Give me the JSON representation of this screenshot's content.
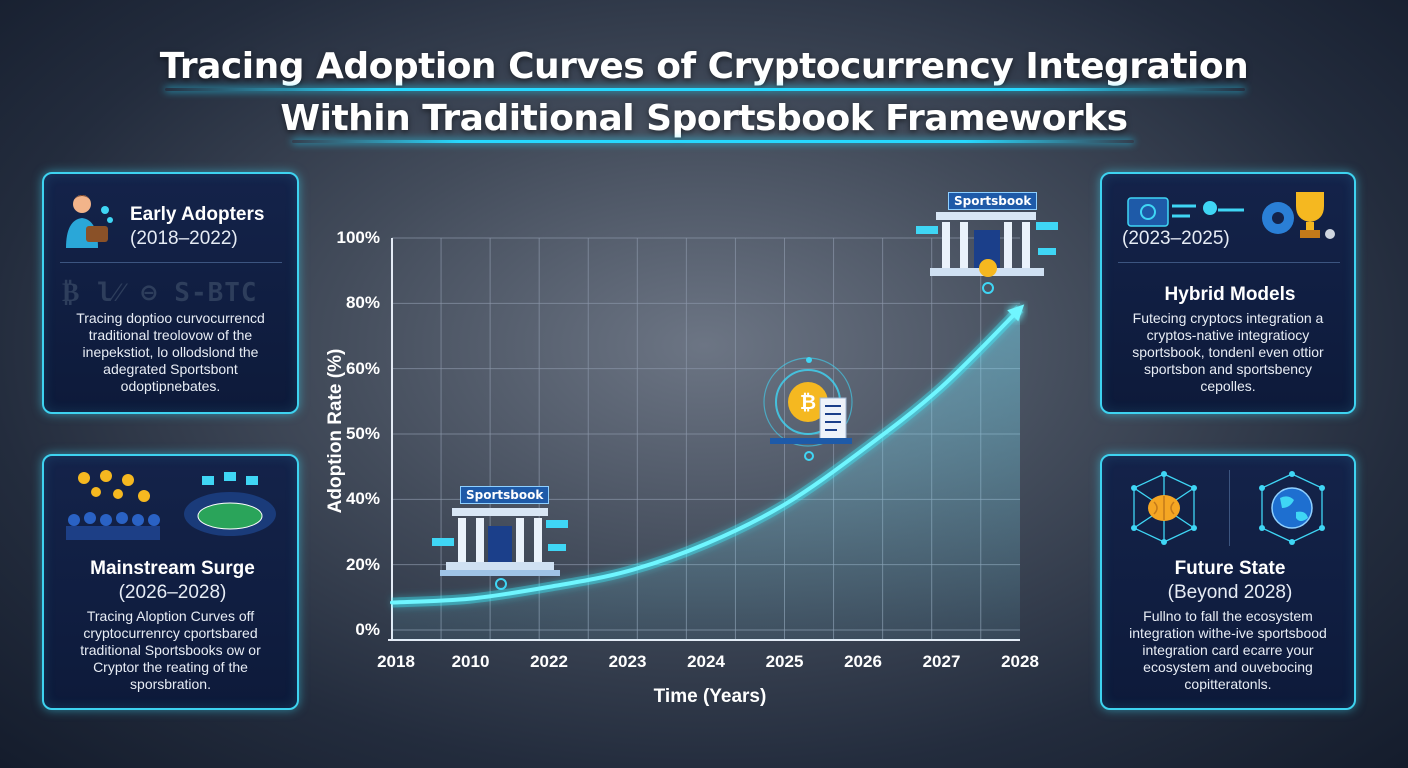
{
  "title": {
    "line1": "Tracing Adoption Curves of Cryptocurrency Integration",
    "line2": "Within Traditional Sportsbook Frameworks"
  },
  "cards": {
    "early": {
      "heading": "Early Adopters",
      "period": "(2018–2022)",
      "watermark": "₿ l⁄⁄ ⊖ S-BTC",
      "body": [
        "Tracing doptioo curvocurrencd",
        "traditional treolovow of the",
        "inepekstiot, lo ollodslond the",
        "adegrated Sportsbont",
        "odoptipnebates."
      ]
    },
    "mainstream": {
      "heading": "Mainstream Surge",
      "period": "(2026–2028)",
      "body": [
        "Tracing Aloption Curves off",
        "cryptocurrenrcy cportsbared",
        "traditional Sportsbooks ow or",
        "Cryptor the reating of the",
        "sporsbration."
      ]
    },
    "hybrid": {
      "period": "(2023–2025)",
      "heading": "Hybrid Models",
      "body": [
        "Futecing cryptocs integration a",
        "cryptos-native integratiocy",
        "sportsbook, tondenl even ottior",
        "sportsbon and sportsbency",
        "cepolles."
      ]
    },
    "future": {
      "heading": "Future State",
      "period": "(Beyond 2028)",
      "body": [
        "Fullno to fall the ecosystem",
        "integration withe-ive sportsbood",
        "integration card ecarre your",
        "ecosystem and ouvebocing",
        "copitteratonls."
      ]
    }
  },
  "icons": {
    "early_person": "person-wallet-icon",
    "mainstream_crowd": "crowd-coins-icon",
    "mainstream_stadium": "stadium-icon",
    "hybrid_network": "network-chip-icon",
    "hybrid_trophy": "trophy-gear-icon",
    "future_brain": "brain-network-icon",
    "future_globe": "globe-network-icon",
    "bitcoin_ledger": "bitcoin-ledger-icon",
    "sportsbook": "sportsbook-building-icon"
  },
  "sportsbook_labels": {
    "low": "Sportsbook",
    "high": "Sportsbook"
  },
  "colors": {
    "accent": "#27d9ff",
    "card_bg": "#0f1d40",
    "card_border": "#3ed3f0",
    "grid": "#8a96a8",
    "curve": "#3ef0ff"
  },
  "chart_data": {
    "type": "line",
    "title": "",
    "xlabel": "Time (Years)",
    "ylabel": "Adoption Rate (%)",
    "x_tick_labels": [
      "2018",
      "2010",
      "2022",
      "2023",
      "2024",
      "2025",
      "2026",
      "2027",
      "2028"
    ],
    "y_tick_labels": [
      "0%",
      "20%",
      "40%",
      "50%",
      "60%",
      "80%",
      "100%"
    ],
    "ylim": [
      0,
      100
    ],
    "grid": true,
    "series": [
      {
        "x": [
          "2018",
          "2010",
          "2022",
          "2023",
          "2024",
          "2025",
          "2026",
          "2027",
          "2028"
        ],
        "values": [
          7,
          8,
          11,
          15,
          22,
          32,
          46,
          62,
          82
        ]
      }
    ]
  }
}
